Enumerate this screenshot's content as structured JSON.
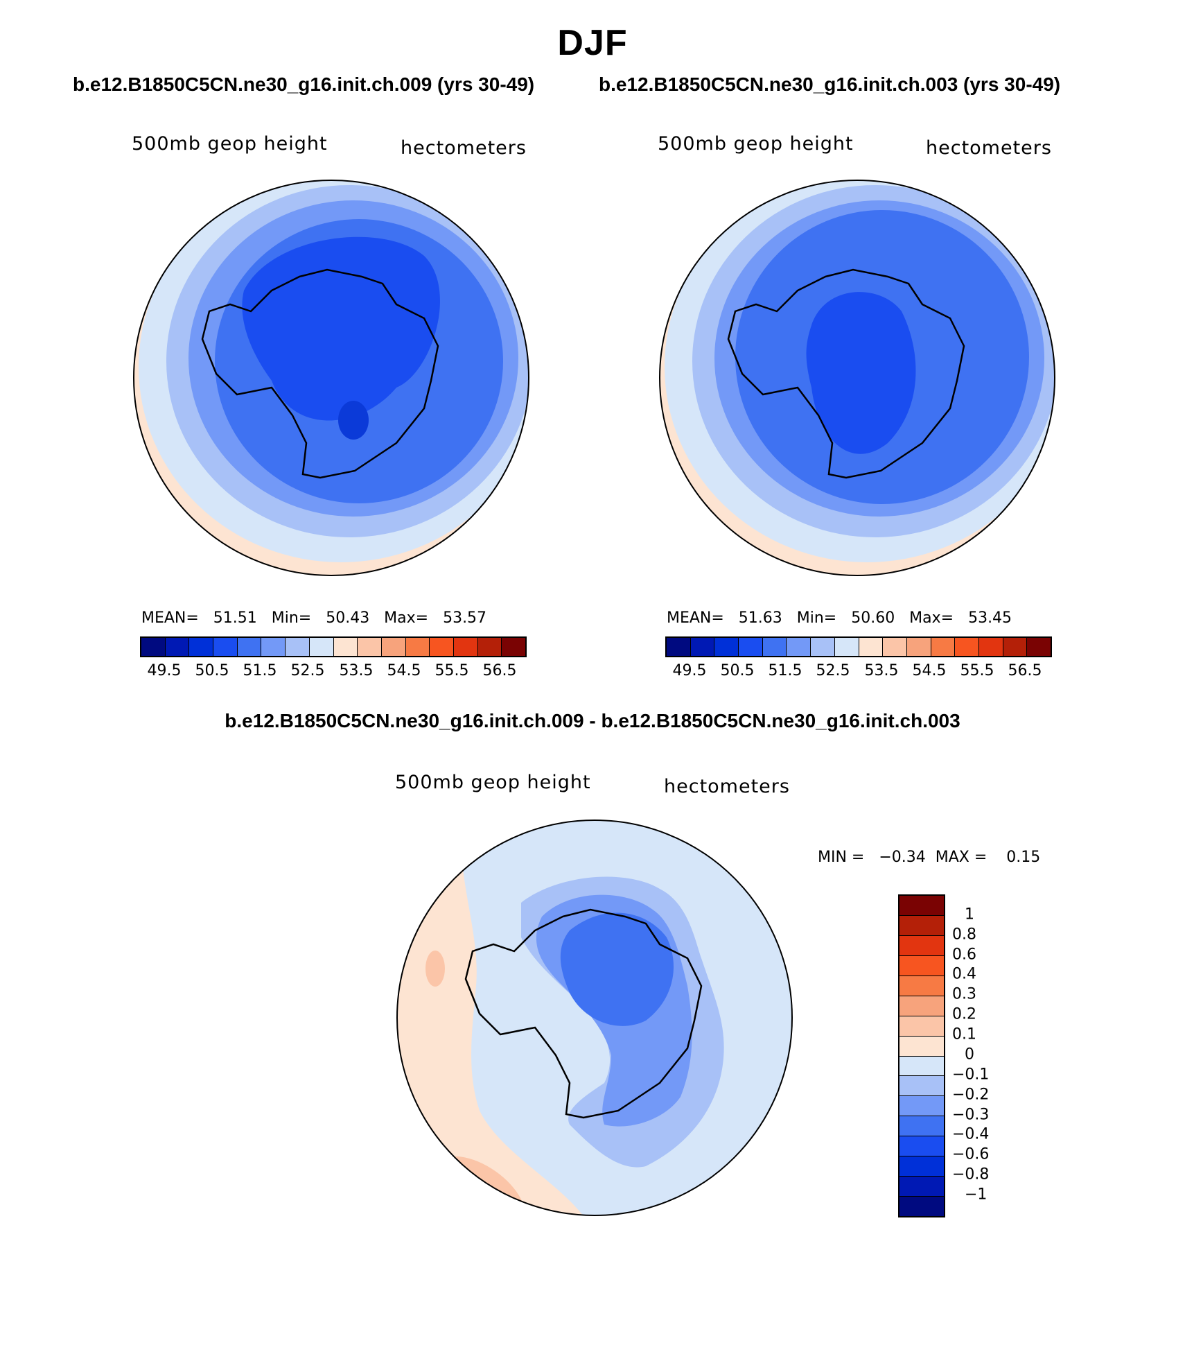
{
  "header": {
    "title": "DJF",
    "case1": "b.e12.B1850C5CN.ne30_g16.init.ch.009 (yrs 30-49)",
    "case2": "b.e12.B1850C5CN.ne30_g16.init.ch.003 (yrs 30-49)",
    "diff_title": "b.e12.B1850C5CN.ne30_g16.init.ch.009 - b.e12.B1850C5CN.ne30_g16.init.ch.003"
  },
  "panel1": {
    "variable": "500mb geop height",
    "units": "hectometers",
    "stats": "MEAN=   51.51   Min=   50.43   Max=   53.57"
  },
  "panel2": {
    "variable": "500mb geop height",
    "units": "hectometers",
    "stats": "MEAN=   51.63   Min=   50.60   Max=   53.45"
  },
  "panel3": {
    "variable": "500mb geop height",
    "units": "hectometers",
    "stats": "MIN =   −0.34  MAX =    0.15"
  },
  "colorbar_abs": {
    "colors": [
      "#000a80",
      "#0019b4",
      "#0030d8",
      "#1a4df0",
      "#3f72f2",
      "#7399f7",
      "#a8c1f7",
      "#d6e6f9",
      "#fde4d2",
      "#fbc5a8",
      "#f7a37c",
      "#f77a44",
      "#f75520",
      "#e23510",
      "#b42008",
      "#7a0303"
    ],
    "tick_labels": [
      "49.5",
      "50.5",
      "51.5",
      "52.5",
      "53.5",
      "54.5",
      "55.5",
      "56.5"
    ]
  },
  "colorbar_diff": {
    "colors": [
      "#7a0303",
      "#b42008",
      "#e23510",
      "#f75520",
      "#f77a44",
      "#f7a37c",
      "#fbc5a8",
      "#fde4d2",
      "#d6e6f9",
      "#a8c1f7",
      "#7399f7",
      "#3f72f2",
      "#1a4df0",
      "#0030d8",
      "#0019b4",
      "#000a80"
    ],
    "tick_labels": [
      "1",
      "0.8",
      "0.6",
      "0.4",
      "0.3",
      "0.2",
      "0.1",
      "0",
      "−0.1",
      "−0.2",
      "−0.3",
      "−0.4",
      "−0.6",
      "−0.8",
      "−1"
    ]
  }
}
